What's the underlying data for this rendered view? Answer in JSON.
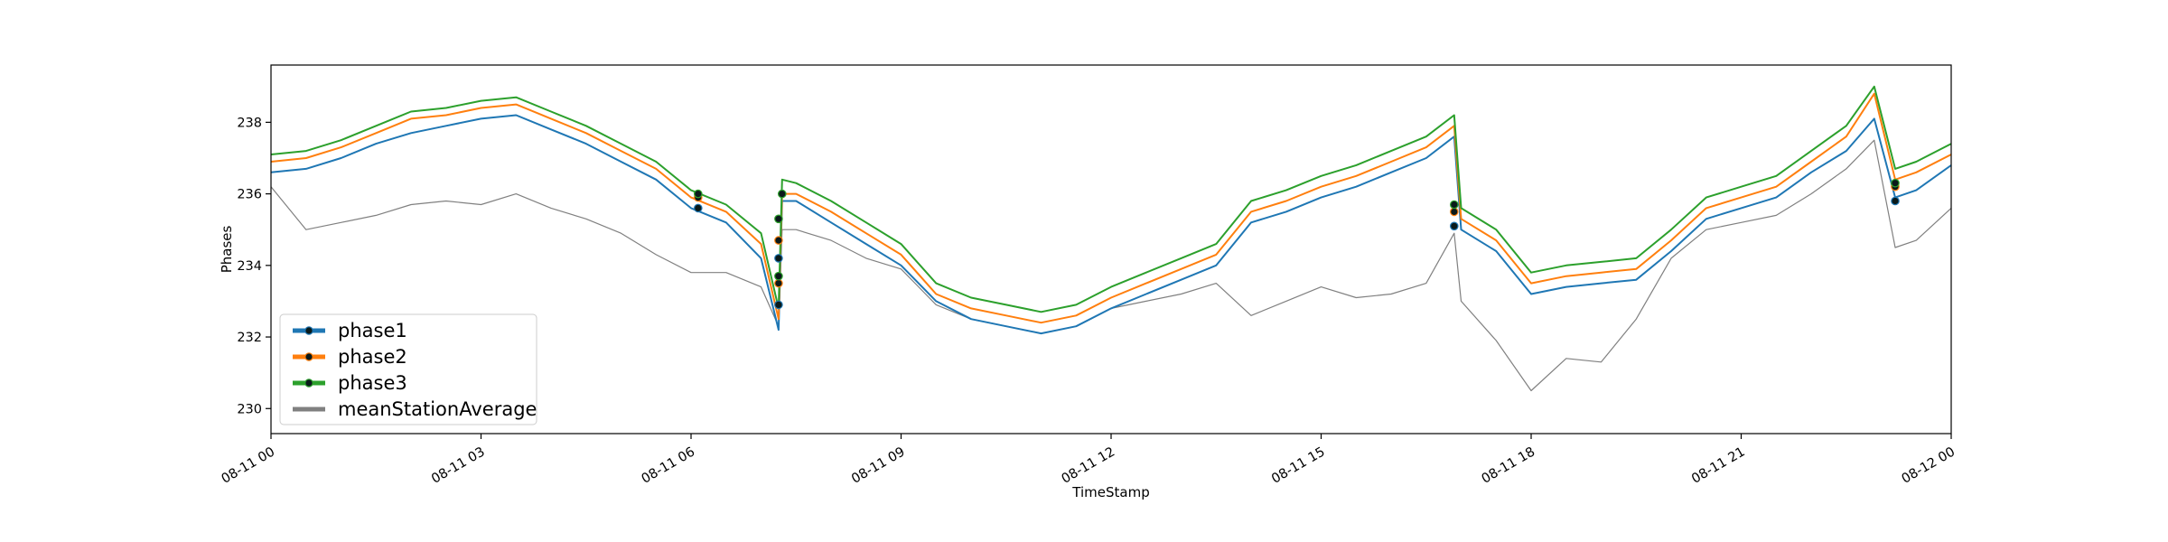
{
  "chart_data": {
    "type": "line",
    "title": "",
    "xlabel": "TimeStamp",
    "ylabel": "Phases",
    "xlim": [
      "08-11 00",
      "08-12 00"
    ],
    "ylim": [
      229.3,
      239.6
    ],
    "x_ticks": [
      "08-11 00",
      "08-11 03",
      "08-11 06",
      "08-11 09",
      "08-11 12",
      "08-11 15",
      "08-11 18",
      "08-11 21",
      "08-12 00"
    ],
    "y_ticks": [
      230,
      232,
      234,
      236,
      238
    ],
    "grid": false,
    "legend_position": "lower-left",
    "x_unit_note": "hours since 08-11 00",
    "series": [
      {
        "name": "phase1",
        "color": "#1f77b4",
        "x": [
          0,
          0.5,
          1,
          1.5,
          2,
          2.5,
          3,
          3.5,
          4,
          4.5,
          5,
          5.5,
          6,
          6.5,
          7,
          7.25,
          7.3,
          7.5,
          8,
          8.5,
          9,
          9.5,
          10,
          10.5,
          11,
          11.5,
          12,
          12.5,
          13,
          13.5,
          14,
          14.5,
          15,
          15.5,
          16,
          16.5,
          16.9,
          17,
          17.5,
          18,
          18.5,
          19,
          19.5,
          20,
          20.5,
          21,
          21.5,
          22,
          22.5,
          22.9,
          23.2,
          23.5,
          24
        ],
        "values": [
          236.6,
          236.7,
          237.0,
          237.4,
          237.7,
          237.9,
          238.1,
          238.2,
          237.8,
          237.4,
          236.9,
          236.4,
          235.6,
          235.2,
          234.2,
          232.2,
          235.8,
          235.8,
          235.2,
          234.6,
          234.0,
          233.0,
          232.5,
          232.3,
          232.1,
          232.3,
          232.8,
          233.2,
          233.6,
          234.0,
          235.2,
          235.5,
          235.9,
          236.2,
          236.6,
          237.0,
          237.6,
          235.0,
          234.4,
          233.2,
          233.4,
          233.5,
          233.6,
          234.4,
          235.3,
          235.6,
          235.9,
          236.6,
          237.2,
          238.1,
          235.9,
          236.1,
          236.8
        ]
      },
      {
        "name": "phase2",
        "color": "#ff7f0e",
        "x": [
          0,
          0.5,
          1,
          1.5,
          2,
          2.5,
          3,
          3.5,
          4,
          4.5,
          5,
          5.5,
          6,
          6.5,
          7,
          7.25,
          7.3,
          7.5,
          8,
          8.5,
          9,
          9.5,
          10,
          10.5,
          11,
          11.5,
          12,
          12.5,
          13,
          13.5,
          14,
          14.5,
          15,
          15.5,
          16,
          16.5,
          16.9,
          17,
          17.5,
          18,
          18.5,
          19,
          19.5,
          20,
          20.5,
          21,
          21.5,
          22,
          22.5,
          22.9,
          23.2,
          23.5,
          24
        ],
        "values": [
          236.9,
          237.0,
          237.3,
          237.7,
          238.1,
          238.2,
          238.4,
          238.5,
          238.1,
          237.7,
          237.2,
          236.7,
          235.9,
          235.5,
          234.6,
          232.5,
          236.0,
          236.0,
          235.5,
          234.9,
          234.3,
          233.2,
          232.8,
          232.6,
          232.4,
          232.6,
          233.1,
          233.5,
          233.9,
          234.3,
          235.5,
          235.8,
          236.2,
          236.5,
          236.9,
          237.3,
          237.9,
          235.3,
          234.7,
          233.5,
          233.7,
          233.8,
          233.9,
          234.7,
          235.6,
          235.9,
          236.2,
          236.9,
          237.6,
          238.8,
          236.4,
          236.6,
          237.1
        ]
      },
      {
        "name": "phase3",
        "color": "#2ca02c",
        "x": [
          0,
          0.5,
          1,
          1.5,
          2,
          2.5,
          3,
          3.5,
          4,
          4.5,
          5,
          5.5,
          6,
          6.5,
          7,
          7.25,
          7.3,
          7.5,
          8,
          8.5,
          9,
          9.5,
          10,
          10.5,
          11,
          11.5,
          12,
          12.5,
          13,
          13.5,
          14,
          14.5,
          15,
          15.5,
          16,
          16.5,
          16.9,
          17,
          17.5,
          18,
          18.5,
          19,
          19.5,
          20,
          20.5,
          21,
          21.5,
          22,
          22.5,
          22.9,
          23.2,
          23.5,
          24
        ],
        "values": [
          237.1,
          237.2,
          237.5,
          237.9,
          238.3,
          238.4,
          238.6,
          238.7,
          238.3,
          237.9,
          237.4,
          236.9,
          236.1,
          235.7,
          234.9,
          232.8,
          236.4,
          236.3,
          235.8,
          235.2,
          234.6,
          233.5,
          233.1,
          232.9,
          232.7,
          232.9,
          233.4,
          233.8,
          234.2,
          234.6,
          235.8,
          236.1,
          236.5,
          236.8,
          237.2,
          237.6,
          238.2,
          235.6,
          235.0,
          233.8,
          234.0,
          234.1,
          234.2,
          235.0,
          235.9,
          236.2,
          236.5,
          237.2,
          237.9,
          239.0,
          236.7,
          236.9,
          237.4
        ]
      },
      {
        "name": "meanStationAverage",
        "color": "#808080",
        "x": [
          0,
          0.5,
          1,
          1.5,
          2,
          2.5,
          3,
          3.5,
          4,
          4.5,
          5,
          5.5,
          6,
          6.5,
          7,
          7.25,
          7.3,
          7.5,
          8,
          8.5,
          9,
          9.5,
          10,
          10.5,
          11,
          11.5,
          12,
          12.5,
          13,
          13.5,
          14,
          14.5,
          15,
          15.5,
          16,
          16.5,
          16.9,
          17,
          17.5,
          18,
          18.5,
          19,
          19.5,
          20,
          20.5,
          21,
          21.5,
          22,
          22.5,
          22.9,
          23.2,
          23.5,
          24
        ],
        "values": [
          236.2,
          235.0,
          235.2,
          235.4,
          235.7,
          235.8,
          235.7,
          236.0,
          235.6,
          235.3,
          234.9,
          234.3,
          233.8,
          233.8,
          233.4,
          232.3,
          235.0,
          235.0,
          234.7,
          234.2,
          233.9,
          232.9,
          232.5,
          232.3,
          232.1,
          232.3,
          232.8,
          233.0,
          233.2,
          233.5,
          232.6,
          233.0,
          233.4,
          233.1,
          233.2,
          233.5,
          234.9,
          233.0,
          231.9,
          230.5,
          231.4,
          231.3,
          232.5,
          234.2,
          235.0,
          235.2,
          235.4,
          236.0,
          236.7,
          237.5,
          234.5,
          234.7,
          235.6
        ]
      }
    ],
    "markers": {
      "phase1": [
        [
          6.1,
          235.6
        ],
        [
          7.25,
          232.9
        ],
        [
          7.25,
          234.2
        ],
        [
          16.9,
          235.1
        ],
        [
          23.2,
          235.8
        ]
      ],
      "phase2": [
        [
          6.1,
          235.9
        ],
        [
          7.25,
          233.5
        ],
        [
          7.25,
          234.7
        ],
        [
          16.9,
          235.5
        ],
        [
          23.2,
          236.2
        ]
      ],
      "phase3": [
        [
          6.1,
          236.0
        ],
        [
          7.25,
          233.7
        ],
        [
          7.25,
          235.3
        ],
        [
          7.3,
          236.0
        ],
        [
          16.9,
          235.7
        ],
        [
          23.2,
          236.3
        ]
      ]
    }
  }
}
